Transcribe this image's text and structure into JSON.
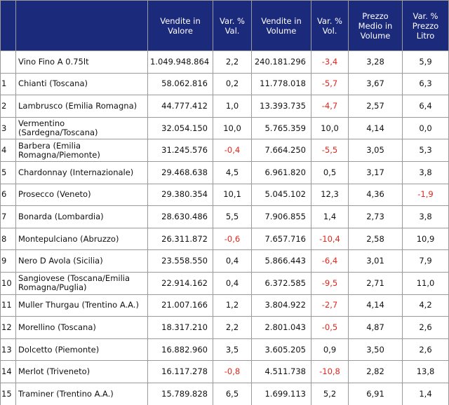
{
  "table": {
    "header": [
      "Vendite in Valore",
      "Var. % Val.",
      "Vendite in Volume",
      "Var. % Vol.",
      "Prezzo Medio in Volume",
      "Var. % Prezzo Litro"
    ],
    "rows": [
      {
        "name": "Vino Fino A 0.75lt",
        "values": [
          "1.049.948.864",
          "2,2",
          "240.181.296",
          "-3,4",
          "3,28",
          "5,9"
        ]
      },
      {
        "rank": "1",
        "name": "Chianti (Toscana)",
        "values": [
          "58.062.816",
          "0,2",
          "11.778.018",
          "-5,7",
          "3,67",
          "6,3"
        ]
      },
      {
        "rank": "2",
        "name": "Lambrusco (Emilia Romagna)",
        "values": [
          "44.777.412",
          "1,0",
          "13.393.735",
          "-4,7",
          "2,57",
          "6,4"
        ]
      },
      {
        "rank": "3",
        "name": "Vermentino (Sardegna/Toscana)",
        "values": [
          "32.054.150",
          "10,0",
          "5.765.359",
          "10,0",
          "4,14",
          "0,0"
        ]
      },
      {
        "rank": "4",
        "name": "Barbera (Emilia Romagna/Piemonte)",
        "values": [
          "31.245.576",
          "-0,4",
          "7.664.250",
          "-5,5",
          "3,05",
          "5,3"
        ]
      },
      {
        "rank": "5",
        "name": "Chardonnay (Internazionale)",
        "values": [
          "29.468.638",
          "4,5",
          "6.961.820",
          "0,5",
          "3,17",
          "3,8"
        ]
      },
      {
        "rank": "6",
        "name": "Prosecco (Veneto)",
        "values": [
          "29.380.354",
          "10,1",
          "5.045.102",
          "12,3",
          "4,36",
          "-1,9"
        ]
      },
      {
        "rank": "7",
        "name": "Bonarda (Lombardia)",
        "values": [
          "28.630.486",
          "5,5",
          "7.906.855",
          "1,4",
          "2,73",
          "3,8"
        ]
      },
      {
        "rank": "8",
        "name": "Montepulciano (Abruzzo)",
        "values": [
          "26.311.872",
          "-0,6",
          "7.657.716",
          "-10,4",
          "2,58",
          "10,9"
        ]
      },
      {
        "rank": "9",
        "name": "Nero D Avola (Sicilia)",
        "values": [
          "23.558.550",
          "0,4",
          "5.866.443",
          "-6,4",
          "3,01",
          "7,9"
        ]
      },
      {
        "rank": "10",
        "name": "Sangiovese (Toscana/Emilia Romagna/Puglia)",
        "values": [
          "22.914.162",
          "0,4",
          "6.372.585",
          "-9,5",
          "2,71",
          "11,0"
        ]
      },
      {
        "rank": "11",
        "name": "Muller Thurgau (Trentino A.A.)",
        "values": [
          "21.007.166",
          "1,2",
          "3.804.922",
          "-2,7",
          "4,14",
          "4,2"
        ]
      },
      {
        "rank": "12",
        "name": "Morellino (Toscana)",
        "values": [
          "18.317.210",
          "2,2",
          "2.801.043",
          "-0,5",
          "4,87",
          "2,6"
        ]
      },
      {
        "rank": "13",
        "name": "Dolcetto (Piemonte)",
        "values": [
          "16.882.960",
          "3,5",
          "3.605.205",
          "0,9",
          "3,50",
          "2,6"
        ]
      },
      {
        "rank": "14",
        "name": "Merlot (Triveneto)",
        "values": [
          "16.117.278",
          "-0,8",
          "4.511.738",
          "-10,8",
          "2,82",
          "13,8"
        ]
      },
      {
        "rank": "15",
        "name": "Traminer (Trentino A.A.)",
        "values": [
          "15.789.828",
          "6,5",
          "1.699.113",
          "5,2",
          "6,91",
          "1,4"
        ]
      }
    ]
  }
}
